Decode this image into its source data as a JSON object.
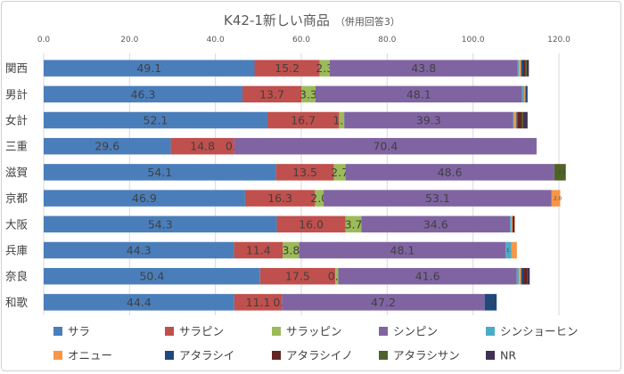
{
  "chart_data": {
    "type": "bar",
    "orientation": "horizontal",
    "stacked": true,
    "title": "K42-1新しい商品",
    "subtitle": "（併用回答3）",
    "xlim": [
      0,
      120
    ],
    "xticks": [
      "0.0",
      "20.0",
      "40.0",
      "60.0",
      "80.0",
      "100.0",
      "120.0"
    ],
    "grid": true,
    "legend_position": "bottom",
    "categories": [
      "関西",
      "男計",
      "女計",
      "三重",
      "滋賀",
      "京都",
      "大阪",
      "兵庫",
      "奈良",
      "和歌"
    ],
    "series": [
      {
        "name": "サラ",
        "color": "#4a7ebb",
        "values": [
          49.1,
          46.3,
          52.1,
          29.6,
          54.1,
          46.9,
          54.3,
          44.3,
          50.4,
          44.4
        ],
        "labels": [
          "49.1",
          "46.3",
          "52.1",
          "29.6",
          "54.1",
          "46.9",
          "54.3",
          "44.3",
          "50.4",
          "44.4"
        ]
      },
      {
        "name": "サラピン",
        "color": "#c0504d",
        "values": [
          15.2,
          13.7,
          16.7,
          14.8,
          13.5,
          16.3,
          16.0,
          11.4,
          17.5,
          11.1
        ],
        "labels": [
          "15.2",
          "13.7",
          "16.7",
          "14.8",
          "13.5",
          "16.3",
          "16.0",
          "11.4",
          "17.5",
          "11.1"
        ]
      },
      {
        "name": "サラッピン",
        "color": "#9bbb59",
        "values": [
          2.3,
          3.3,
          1.2,
          0.0,
          2.7,
          2.0,
          3.7,
          3.8,
          0.7,
          0.0
        ],
        "labels": [
          "2.3",
          "3.3",
          "1.2",
          "0.0",
          "2.7",
          "2.0",
          "3.7",
          "3.8",
          "0.7",
          "0.0"
        ]
      },
      {
        "name": "シンピン",
        "color": "#8064a2",
        "values": [
          43.8,
          48.1,
          39.3,
          70.4,
          48.6,
          53.1,
          34.6,
          48.1,
          41.6,
          47.2
        ],
        "labels": [
          "43.8",
          "48.1",
          "39.3",
          "70.4",
          "48.6",
          "53.1",
          "34.6",
          "48.1",
          "41.6",
          "47.2"
        ]
      },
      {
        "name": "シンショーヒン",
        "color": "#4bacc6",
        "values": [
          0.3,
          0.5,
          0.2,
          0.0,
          0.0,
          0.0,
          0.3,
          1.3,
          0.5,
          0.0
        ],
        "labels": [
          "",
          "",
          "",
          "",
          "",
          "",
          "",
          "1.3",
          "",
          ""
        ]
      },
      {
        "name": "オニュー",
        "color": "#f79646",
        "values": [
          0.5,
          0.3,
          0.6,
          0.0,
          0.0,
          2.0,
          0.3,
          1.3,
          0.5,
          0.0
        ],
        "labels": [
          "",
          "",
          "",
          "",
          "",
          "2.0",
          "",
          "",
          "",
          ""
        ]
      },
      {
        "name": "アタラシイ",
        "color": "#1f497d",
        "values": [
          0.5,
          0.5,
          0.3,
          0.0,
          0.0,
          0.0,
          0.0,
          0.0,
          0.5,
          2.8
        ],
        "labels": [
          "",
          "",
          "",
          "",
          "",
          "",
          "",
          "",
          "",
          "2.8"
        ]
      },
      {
        "name": "アタラシイノ",
        "color": "#632523",
        "values": [
          0.5,
          0.0,
          1.0,
          0.0,
          0.0,
          0.0,
          0.5,
          0.0,
          1.0,
          0.0
        ],
        "labels": [
          "",
          "",
          "",
          "",
          "",
          "",
          "",
          "",
          "",
          ""
        ]
      },
      {
        "name": "アタラシサン",
        "color": "#4f6228",
        "values": [
          0.3,
          0.0,
          0.3,
          0.0,
          2.7,
          0.0,
          0.0,
          0.0,
          0.0,
          0.0
        ],
        "labels": [
          "",
          "",
          "",
          "",
          "2.7",
          "",
          "",
          "",
          "",
          ""
        ]
      },
      {
        "name": "NR",
        "color": "#403152",
        "values": [
          0.5,
          0.0,
          1.0,
          0.0,
          0.0,
          0.0,
          0.0,
          0.0,
          0.5,
          0.0
        ],
        "labels": [
          "",
          "",
          "",
          "",
          "",
          "",
          "",
          "",
          "",
          ""
        ]
      }
    ]
  }
}
